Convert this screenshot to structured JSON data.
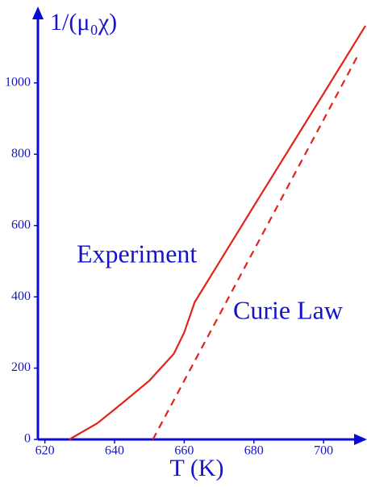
{
  "chart_data": {
    "type": "line",
    "ylabel": "1/(μ₀χ)",
    "xlabel": "T (K)",
    "xlim": [
      618,
      712
    ],
    "ylim": [
      0,
      1210
    ],
    "xticks": [
      620,
      640,
      660,
      680,
      700
    ],
    "yticks": [
      0,
      200,
      400,
      600,
      800,
      1000
    ],
    "axis_color": "#0a0ad6",
    "text_color": "#1414d0",
    "series": [
      {
        "name": "Experiment",
        "color": "#e2231a",
        "dashed": false,
        "x": [
          627,
          635,
          642,
          650,
          657,
          660,
          663,
          680,
          700,
          712
        ],
        "values": [
          0,
          45,
          100,
          165,
          240,
          300,
          385,
          655,
          970,
          1160
        ]
      },
      {
        "name": "Curie Law",
        "color": "#e2231a",
        "dashed": true,
        "x": [
          651,
          710
        ],
        "values": [
          0,
          1080
        ]
      }
    ]
  }
}
